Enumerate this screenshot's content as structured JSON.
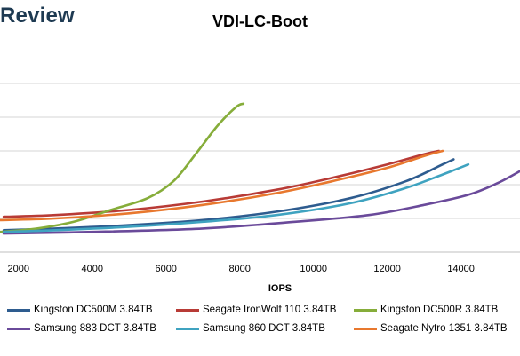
{
  "brand": "Review",
  "chart_data": {
    "type": "line",
    "title": "VDI-LC-Boot",
    "xlabel": "IOPS",
    "ylabel": "",
    "xlim": [
      1500,
      15600
    ],
    "ylim": [
      0,
      6
    ],
    "x_ticks": [
      2000,
      4000,
      6000,
      8000,
      10000,
      12000,
      14000
    ],
    "y_gridlines": [
      1,
      2,
      3,
      4,
      5
    ],
    "grid": true,
    "legend_position": "bottom",
    "series": [
      {
        "name": "Kingston DC500M 3.84TB",
        "color": "#2e5c8f",
        "points": [
          [
            1600,
            0.65
          ],
          [
            3000,
            0.7
          ],
          [
            5000,
            0.8
          ],
          [
            7000,
            0.95
          ],
          [
            9000,
            1.2
          ],
          [
            11000,
            1.6
          ],
          [
            12500,
            2.1
          ],
          [
            13500,
            2.6
          ],
          [
            13800,
            2.75
          ]
        ]
      },
      {
        "name": "Seagate IronWolf 110 3.84TB",
        "color": "#b83b36",
        "points": [
          [
            1600,
            1.05
          ],
          [
            3000,
            1.1
          ],
          [
            5000,
            1.25
          ],
          [
            7000,
            1.5
          ],
          [
            9000,
            1.85
          ],
          [
            10500,
            2.2
          ],
          [
            12000,
            2.6
          ],
          [
            13000,
            2.9
          ],
          [
            13400,
            3.0
          ]
        ]
      },
      {
        "name": "Kingston DC500R 3.84TB",
        "color": "#86ad3a",
        "points": [
          [
            1500,
            0.6
          ],
          [
            2500,
            0.7
          ],
          [
            3500,
            0.9
          ],
          [
            4500,
            1.25
          ],
          [
            5500,
            1.6
          ],
          [
            6200,
            2.1
          ],
          [
            6800,
            2.9
          ],
          [
            7400,
            3.75
          ],
          [
            7900,
            4.3
          ],
          [
            8100,
            4.4
          ]
        ]
      },
      {
        "name": "Samsung 883 DCT 3.84TB",
        "color": "#6a4a9a",
        "points": [
          [
            1600,
            0.55
          ],
          [
            4000,
            0.6
          ],
          [
            7000,
            0.7
          ],
          [
            9500,
            0.9
          ],
          [
            11500,
            1.1
          ],
          [
            13000,
            1.4
          ],
          [
            14200,
            1.7
          ],
          [
            15000,
            2.05
          ],
          [
            15600,
            2.4
          ]
        ]
      },
      {
        "name": "Samsung 860 DCT 3.84TB",
        "color": "#3fa3c0",
        "points": [
          [
            1600,
            0.6
          ],
          [
            3000,
            0.65
          ],
          [
            5000,
            0.75
          ],
          [
            7000,
            0.9
          ],
          [
            9000,
            1.1
          ],
          [
            11000,
            1.45
          ],
          [
            12500,
            1.9
          ],
          [
            13500,
            2.3
          ],
          [
            14200,
            2.6
          ]
        ]
      },
      {
        "name": "Seagate Nytro 1351 3.84TB",
        "color": "#e8782e",
        "points": [
          [
            1500,
            0.95
          ],
          [
            3000,
            1.0
          ],
          [
            5000,
            1.15
          ],
          [
            7000,
            1.4
          ],
          [
            9000,
            1.75
          ],
          [
            10500,
            2.1
          ],
          [
            12000,
            2.5
          ],
          [
            13000,
            2.85
          ],
          [
            13500,
            3.0
          ]
        ]
      }
    ]
  }
}
